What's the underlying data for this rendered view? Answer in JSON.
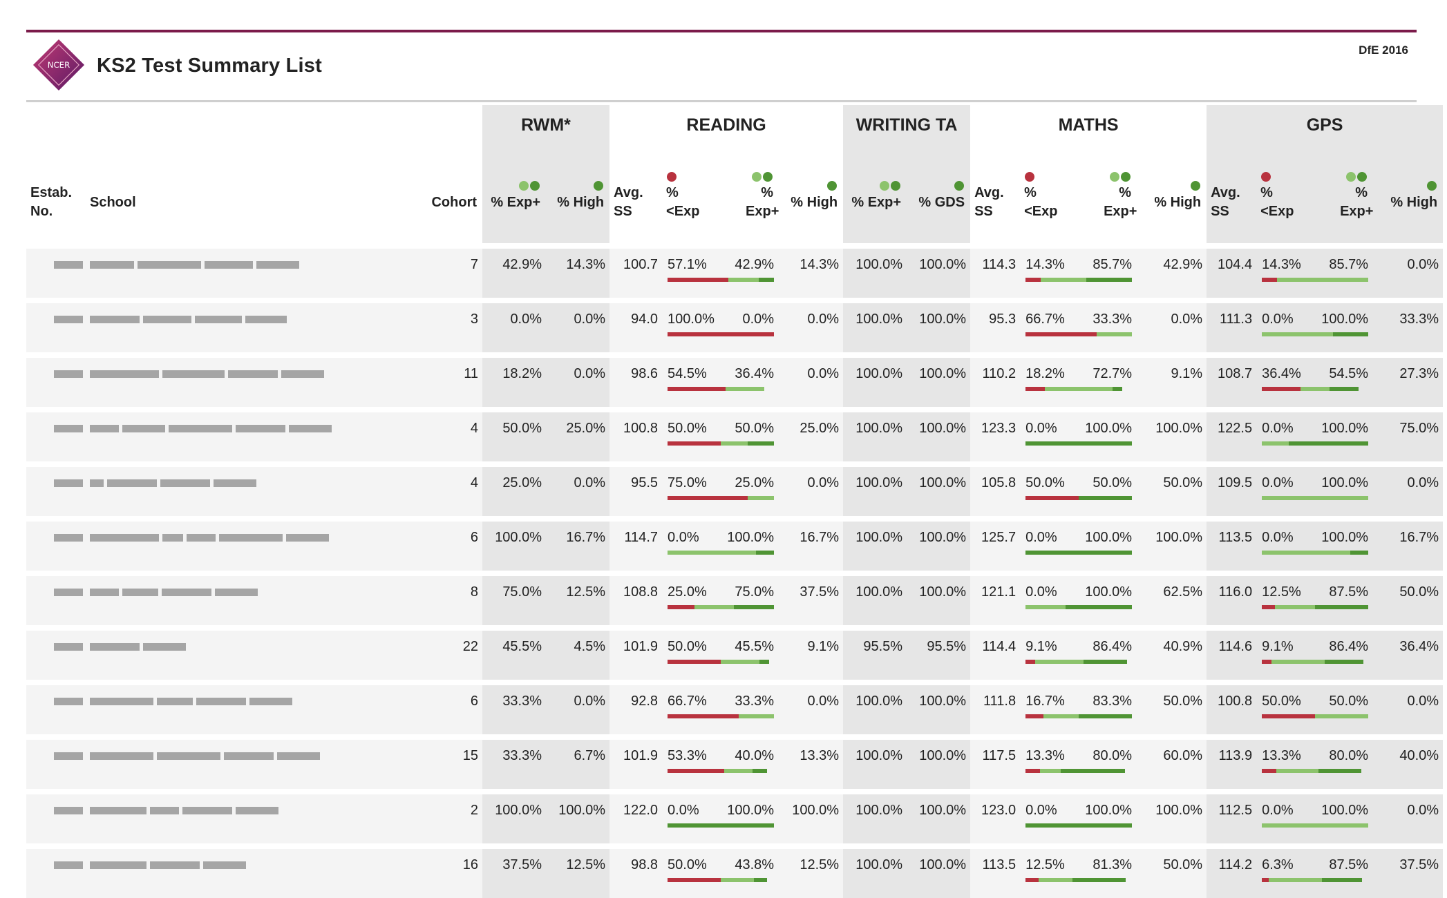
{
  "header": {
    "title": "KS2 Test Summary List",
    "logo_text": "NCER",
    "publisher": "DfE 2016"
  },
  "colors": {
    "accent": "#7b1b4a",
    "below": "#b8323e",
    "expected": "#8cc36c",
    "high": "#4f9434"
  },
  "groups": {
    "rwm": "RWM*",
    "reading": "READING",
    "writing": "WRITING TA",
    "maths": "MATHS",
    "gps": "GPS"
  },
  "columns": {
    "estab": "Estab. No.",
    "school": "School",
    "cohort": "Cohort",
    "pct_exp": "% Exp+",
    "pct_high": "% High",
    "avg_ss": "Avg. SS",
    "pct_below": "% <Exp",
    "pct_gds": "% GDS"
  },
  "rows": [
    {
      "estab_redacted": true,
      "school_redacted": [
        64,
        92,
        70,
        62
      ],
      "cohort": "7",
      "rwm": {
        "exp": "42.9%",
        "high": "14.3%"
      },
      "reading": {
        "ss": "100.7",
        "below": "57.1%",
        "exp": "42.9%",
        "high": "14.3%"
      },
      "writing": {
        "exp": "100.0%",
        "gds": "100.0%"
      },
      "maths": {
        "ss": "114.3",
        "below": "14.3%",
        "exp": "85.7%",
        "high": "42.9%"
      },
      "gps": {
        "ss": "104.4",
        "below": "14.3%",
        "exp": "85.7%",
        "high": "0.0%"
      }
    },
    {
      "estab_redacted": true,
      "school_redacted": [
        72,
        70,
        68,
        60
      ],
      "cohort": "3",
      "rwm": {
        "exp": "0.0%",
        "high": "0.0%"
      },
      "reading": {
        "ss": "94.0",
        "below": "100.0%",
        "exp": "0.0%",
        "high": "0.0%"
      },
      "writing": {
        "exp": "100.0%",
        "gds": "100.0%"
      },
      "maths": {
        "ss": "95.3",
        "below": "66.7%",
        "exp": "33.3%",
        "high": "0.0%"
      },
      "gps": {
        "ss": "111.3",
        "below": "0.0%",
        "exp": "100.0%",
        "high": "33.3%"
      }
    },
    {
      "estab_redacted": true,
      "school_redacted": [
        100,
        90,
        72,
        62
      ],
      "cohort": "11",
      "rwm": {
        "exp": "18.2%",
        "high": "0.0%"
      },
      "reading": {
        "ss": "98.6",
        "below": "54.5%",
        "exp": "36.4%",
        "high": "0.0%"
      },
      "writing": {
        "exp": "100.0%",
        "gds": "100.0%"
      },
      "maths": {
        "ss": "110.2",
        "below": "18.2%",
        "exp": "72.7%",
        "high": "9.1%"
      },
      "gps": {
        "ss": "108.7",
        "below": "36.4%",
        "exp": "54.5%",
        "high": "27.3%"
      }
    },
    {
      "estab_redacted": true,
      "school_redacted": [
        42,
        62,
        92,
        72,
        62
      ],
      "cohort": "4",
      "rwm": {
        "exp": "50.0%",
        "high": "25.0%"
      },
      "reading": {
        "ss": "100.8",
        "below": "50.0%",
        "exp": "50.0%",
        "high": "25.0%"
      },
      "writing": {
        "exp": "100.0%",
        "gds": "100.0%"
      },
      "maths": {
        "ss": "123.3",
        "below": "0.0%",
        "exp": "100.0%",
        "high": "100.0%"
      },
      "gps": {
        "ss": "122.5",
        "below": "0.0%",
        "exp": "100.0%",
        "high": "75.0%"
      }
    },
    {
      "estab_redacted": true,
      "school_redacted": [
        20,
        72,
        72,
        62
      ],
      "cohort": "4",
      "rwm": {
        "exp": "25.0%",
        "high": "0.0%"
      },
      "reading": {
        "ss": "95.5",
        "below": "75.0%",
        "exp": "25.0%",
        "high": "0.0%"
      },
      "writing": {
        "exp": "100.0%",
        "gds": "100.0%"
      },
      "maths": {
        "ss": "105.8",
        "below": "50.0%",
        "exp": "50.0%",
        "high": "50.0%"
      },
      "gps": {
        "ss": "109.5",
        "below": "0.0%",
        "exp": "100.0%",
        "high": "0.0%"
      }
    },
    {
      "estab_redacted": true,
      "school_redacted": [
        100,
        30,
        42,
        92,
        62
      ],
      "cohort": "6",
      "rwm": {
        "exp": "100.0%",
        "high": "16.7%"
      },
      "reading": {
        "ss": "114.7",
        "below": "0.0%",
        "exp": "100.0%",
        "high": "16.7%"
      },
      "writing": {
        "exp": "100.0%",
        "gds": "100.0%"
      },
      "maths": {
        "ss": "125.7",
        "below": "0.0%",
        "exp": "100.0%",
        "high": "100.0%"
      },
      "gps": {
        "ss": "113.5",
        "below": "0.0%",
        "exp": "100.0%",
        "high": "16.7%"
      }
    },
    {
      "estab_redacted": true,
      "school_redacted": [
        42,
        52,
        72,
        62
      ],
      "cohort": "8",
      "rwm": {
        "exp": "75.0%",
        "high": "12.5%"
      },
      "reading": {
        "ss": "108.8",
        "below": "25.0%",
        "exp": "75.0%",
        "high": "37.5%"
      },
      "writing": {
        "exp": "100.0%",
        "gds": "100.0%"
      },
      "maths": {
        "ss": "121.1",
        "below": "0.0%",
        "exp": "100.0%",
        "high": "62.5%"
      },
      "gps": {
        "ss": "116.0",
        "below": "12.5%",
        "exp": "87.5%",
        "high": "50.0%"
      }
    },
    {
      "estab_redacted": true,
      "school_redacted": [
        72,
        62
      ],
      "cohort": "22",
      "rwm": {
        "exp": "45.5%",
        "high": "4.5%"
      },
      "reading": {
        "ss": "101.9",
        "below": "50.0%",
        "exp": "45.5%",
        "high": "9.1%"
      },
      "writing": {
        "exp": "95.5%",
        "gds": "95.5%"
      },
      "maths": {
        "ss": "114.4",
        "below": "9.1%",
        "exp": "86.4%",
        "high": "40.9%"
      },
      "gps": {
        "ss": "114.6",
        "below": "9.1%",
        "exp": "86.4%",
        "high": "36.4%"
      }
    },
    {
      "estab_redacted": true,
      "school_redacted": [
        92,
        52,
        72,
        62
      ],
      "cohort": "6",
      "rwm": {
        "exp": "33.3%",
        "high": "0.0%"
      },
      "reading": {
        "ss": "92.8",
        "below": "66.7%",
        "exp": "33.3%",
        "high": "0.0%"
      },
      "writing": {
        "exp": "100.0%",
        "gds": "100.0%"
      },
      "maths": {
        "ss": "111.8",
        "below": "16.7%",
        "exp": "83.3%",
        "high": "50.0%"
      },
      "gps": {
        "ss": "100.8",
        "below": "50.0%",
        "exp": "50.0%",
        "high": "0.0%"
      }
    },
    {
      "estab_redacted": true,
      "school_redacted": [
        92,
        92,
        72,
        62
      ],
      "cohort": "15",
      "rwm": {
        "exp": "33.3%",
        "high": "6.7%"
      },
      "reading": {
        "ss": "101.9",
        "below": "53.3%",
        "exp": "40.0%",
        "high": "13.3%"
      },
      "writing": {
        "exp": "100.0%",
        "gds": "100.0%"
      },
      "maths": {
        "ss": "117.5",
        "below": "13.3%",
        "exp": "80.0%",
        "high": "60.0%"
      },
      "gps": {
        "ss": "113.9",
        "below": "13.3%",
        "exp": "80.0%",
        "high": "40.0%"
      }
    },
    {
      "estab_redacted": true,
      "school_redacted": [
        82,
        42,
        72,
        62
      ],
      "cohort": "2",
      "rwm": {
        "exp": "100.0%",
        "high": "100.0%"
      },
      "reading": {
        "ss": "122.0",
        "below": "0.0%",
        "exp": "100.0%",
        "high": "100.0%"
      },
      "writing": {
        "exp": "100.0%",
        "gds": "100.0%"
      },
      "maths": {
        "ss": "123.0",
        "below": "0.0%",
        "exp": "100.0%",
        "high": "100.0%"
      },
      "gps": {
        "ss": "112.5",
        "below": "0.0%",
        "exp": "100.0%",
        "high": "0.0%"
      }
    },
    {
      "estab_redacted": true,
      "school_redacted": [
        82,
        72,
        62
      ],
      "cohort": "16",
      "rwm": {
        "exp": "37.5%",
        "high": "12.5%"
      },
      "reading": {
        "ss": "98.8",
        "below": "50.0%",
        "exp": "43.8%",
        "high": "12.5%"
      },
      "writing": {
        "exp": "100.0%",
        "gds": "100.0%"
      },
      "maths": {
        "ss": "113.5",
        "below": "12.5%",
        "exp": "81.3%",
        "high": "50.0%"
      },
      "gps": {
        "ss": "114.2",
        "below": "6.3%",
        "exp": "87.5%",
        "high": "37.5%"
      }
    }
  ]
}
